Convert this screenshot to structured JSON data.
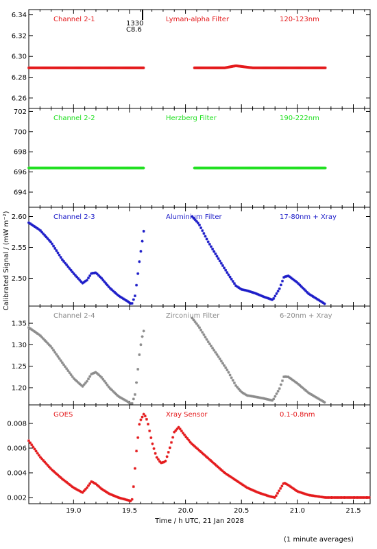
{
  "figure": {
    "xlabel": "Time / h UTC, 21 Jan 2028",
    "ylabel": "Calibrated Signal / (mW m⁻²)",
    "footnote": "(1 minute averages)",
    "marker_annotation": [
      "1330",
      "C8.6"
    ]
  },
  "chart_data": [
    {
      "type": "scatter",
      "name": "Channel 2-1",
      "filter": "Lyman-alpha Filter",
      "band": "120-123nm",
      "color": "#e41a1c",
      "xlim": [
        18.6,
        21.65
      ],
      "ylim": [
        6.25,
        6.345
      ],
      "yticks": [
        6.26,
        6.28,
        6.3,
        6.32,
        6.34
      ],
      "segments": [
        {
          "x": [
            18.6,
            19.63
          ],
          "y": [
            6.289,
            6.289
          ]
        },
        {
          "x": [
            20.08,
            20.35,
            20.45,
            20.6,
            21.25
          ],
          "y": [
            6.289,
            6.289,
            6.291,
            6.289,
            6.289
          ]
        }
      ]
    },
    {
      "type": "scatter",
      "name": "Channel 2-2",
      "filter": "Herzberg Filter",
      "band": "190-222nm",
      "color": "#21e021",
      "xlim": [
        18.6,
        21.65
      ],
      "ylim": [
        692.5,
        702.3
      ],
      "yticks": [
        694,
        696,
        698,
        700,
        702
      ],
      "segments": [
        {
          "x": [
            18.6,
            19.63
          ],
          "y": [
            696.4,
            696.4
          ]
        },
        {
          "x": [
            20.08,
            21.25
          ],
          "y": [
            696.4,
            696.4
          ]
        }
      ]
    },
    {
      "type": "scatter",
      "name": "Channel 2-3",
      "filter": "Aluminium Filter",
      "band": "17-80nm + Xray",
      "color": "#1c1cc8",
      "xlim": [
        18.6,
        21.65
      ],
      "ylim": [
        2.455,
        2.615
      ],
      "yticks": [
        2.5,
        2.55,
        2.6
      ],
      "segments": [
        {
          "x": [
            18.6,
            18.7,
            18.8,
            18.9,
            19.0,
            19.08,
            19.12,
            19.16,
            19.2,
            19.25,
            19.32,
            19.4,
            19.48,
            19.52,
            19.55,
            19.57,
            19.59,
            19.61,
            19.63
          ],
          "y": [
            2.59,
            2.578,
            2.558,
            2.53,
            2.508,
            2.492,
            2.497,
            2.508,
            2.509,
            2.5,
            2.485,
            2.472,
            2.463,
            2.458,
            2.472,
            2.5,
            2.53,
            2.555,
            2.58
          ]
        },
        {
          "x": [
            20.06,
            20.12,
            20.2,
            20.3,
            20.38,
            20.45,
            20.5,
            20.55,
            20.62,
            20.7,
            20.78,
            20.84,
            20.88,
            20.92,
            21.0,
            21.1,
            21.25
          ],
          "y": [
            2.6,
            2.588,
            2.56,
            2.53,
            2.507,
            2.488,
            2.482,
            2.48,
            2.476,
            2.47,
            2.465,
            2.483,
            2.502,
            2.504,
            2.493,
            2.475,
            2.458
          ]
        }
      ]
    },
    {
      "type": "scatter",
      "name": "Channel 2-4",
      "filter": "Zirconium Filter",
      "band": "6-20nm + Xray",
      "color": "#8c8c8c",
      "xlim": [
        18.6,
        21.65
      ],
      "ylim": [
        1.16,
        1.39
      ],
      "yticks": [
        1.2,
        1.25,
        1.3,
        1.35
      ],
      "segments": [
        {
          "x": [
            18.6,
            18.7,
            18.8,
            18.9,
            19.0,
            19.08,
            19.12,
            19.16,
            19.2,
            19.25,
            19.32,
            19.4,
            19.48,
            19.52,
            19.55,
            19.57,
            19.59,
            19.61,
            19.63
          ],
          "y": [
            1.34,
            1.322,
            1.295,
            1.258,
            1.222,
            1.203,
            1.215,
            1.232,
            1.236,
            1.224,
            1.2,
            1.18,
            1.168,
            1.161,
            1.185,
            1.23,
            1.282,
            1.315,
            1.335
          ]
        },
        {
          "x": [
            20.06,
            20.12,
            20.2,
            20.3,
            20.38,
            20.45,
            20.5,
            20.55,
            20.62,
            20.7,
            20.78,
            20.84,
            20.88,
            20.92,
            21.0,
            21.1,
            21.25
          ],
          "y": [
            1.362,
            1.342,
            1.308,
            1.27,
            1.238,
            1.205,
            1.19,
            1.182,
            1.179,
            1.175,
            1.17,
            1.198,
            1.226,
            1.225,
            1.21,
            1.188,
            1.165
          ]
        }
      ]
    },
    {
      "type": "scatter",
      "name": "GOES",
      "filter": "Xray Sensor",
      "band": "0.1-0.8nm",
      "color": "#e41a1c",
      "xlim": [
        18.6,
        21.65
      ],
      "ylim": [
        0.0015,
        0.0095
      ],
      "yticks": [
        0.002,
        0.004,
        0.006,
        0.008
      ],
      "segments": [
        {
          "x": [
            18.6,
            18.7,
            18.8,
            18.9,
            19.0,
            19.08,
            19.12,
            19.16,
            19.2,
            19.25,
            19.32,
            19.4,
            19.48,
            19.52,
            19.53,
            19.56,
            19.59,
            19.63,
            19.66,
            19.7,
            19.74,
            19.78,
            19.82,
            19.86,
            19.9,
            19.94,
            19.98,
            20.05,
            20.15,
            20.25,
            20.35,
            20.45,
            20.55,
            20.65,
            20.75,
            20.8,
            20.84,
            20.88,
            20.92,
            21.0,
            21.1,
            21.25,
            21.4,
            21.65
          ],
          "y": [
            0.0066,
            0.0053,
            0.0043,
            0.0035,
            0.0028,
            0.0024,
            0.0028,
            0.0033,
            0.0031,
            0.0027,
            0.0023,
            0.002,
            0.0018,
            0.0017,
            0.0022,
            0.0056,
            0.0081,
            0.0088,
            0.0082,
            0.0065,
            0.0053,
            0.0048,
            0.0049,
            0.006,
            0.0073,
            0.0077,
            0.0072,
            0.0064,
            0.0056,
            0.0048,
            0.004,
            0.0034,
            0.0028,
            0.0024,
            0.0021,
            0.002,
            0.0026,
            0.0032,
            0.003,
            0.0025,
            0.0022,
            0.002,
            0.002,
            0.002
          ]
        }
      ]
    }
  ],
  "x_axis": {
    "ticks": [
      19.0,
      19.5,
      20.0,
      20.5,
      21.0,
      21.5
    ],
    "labels": [
      "19.0",
      "19.5",
      "20.0",
      "20.5",
      "21.0",
      "21.5"
    ]
  }
}
